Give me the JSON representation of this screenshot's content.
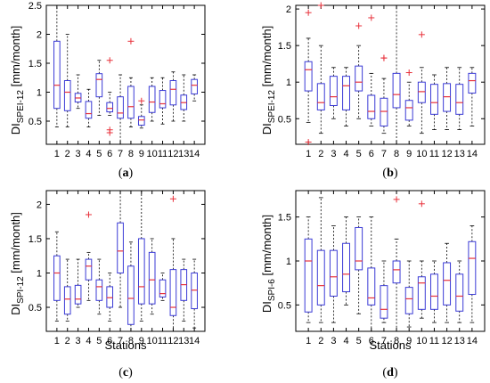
{
  "chart_data": [
    {
      "type": "boxplot",
      "caption": "(a)",
      "ylabel_main": "DI",
      "ylabel_sub": "SPEI-12",
      "ylabel_unit": " [mm/month]",
      "xlabel": "",
      "ylim": [
        0.1,
        2.5
      ],
      "yticks": [
        0.5,
        1,
        1.5,
        2,
        2.5
      ],
      "ytick_labels": [
        "0.5",
        "1",
        "1.5",
        "2",
        "2.5"
      ],
      "categories": [
        "1",
        "2",
        "3",
        "4",
        "5",
        "6",
        "7",
        "8",
        "9",
        "10",
        "11",
        "12",
        "13",
        "14"
      ],
      "boxes": [
        {
          "min": 0.4,
          "q1": 0.72,
          "median": 1.12,
          "q3": 1.88,
          "max": 2.5,
          "outliers": []
        },
        {
          "min": 0.4,
          "q1": 0.68,
          "median": 1.0,
          "q3": 1.2,
          "max": 2.0,
          "outliers": []
        },
        {
          "min": 0.72,
          "q1": 0.83,
          "median": 0.9,
          "q3": 0.98,
          "max": 1.3,
          "outliers": []
        },
        {
          "min": 0.4,
          "q1": 0.55,
          "median": 0.63,
          "q3": 0.84,
          "max": 1.05,
          "outliers": []
        },
        {
          "min": 0.6,
          "q1": 0.92,
          "median": 1.22,
          "q3": 1.32,
          "max": 1.55,
          "outliers": []
        },
        {
          "min": 0.6,
          "q1": 0.66,
          "median": 0.72,
          "q3": 0.82,
          "max": 1.0,
          "outliers": [
            1.55,
            0.35,
            0.3
          ]
        },
        {
          "min": 0.1,
          "q1": 0.55,
          "median": 0.64,
          "q3": 0.92,
          "max": 1.3,
          "outliers": []
        },
        {
          "min": 0.4,
          "q1": 0.55,
          "median": 0.75,
          "q3": 1.1,
          "max": 1.25,
          "outliers": [
            1.88
          ]
        },
        {
          "min": 0.38,
          "q1": 0.43,
          "median": 0.52,
          "q3": 0.58,
          "max": 0.78,
          "outliers": [
            0.85
          ]
        },
        {
          "min": 0.5,
          "q1": 0.65,
          "median": 0.83,
          "q3": 1.1,
          "max": 1.25,
          "outliers": []
        },
        {
          "min": 0.45,
          "q1": 0.73,
          "median": 0.8,
          "q3": 1.03,
          "max": 1.25,
          "outliers": []
        },
        {
          "min": 0.5,
          "q1": 0.78,
          "median": 1.05,
          "q3": 1.2,
          "max": 1.35,
          "outliers": []
        },
        {
          "min": 0.5,
          "q1": 0.7,
          "median": 0.82,
          "q3": 0.95,
          "max": 1.3,
          "outliers": []
        },
        {
          "min": 0.85,
          "q1": 0.97,
          "median": 1.12,
          "q3": 1.22,
          "max": 1.3,
          "outliers": []
        }
      ]
    },
    {
      "type": "boxplot",
      "caption": "(b)",
      "ylabel_main": "DI",
      "ylabel_sub": "SPEI-12",
      "ylabel_unit": " [mm/month]",
      "xlabel": "",
      "ylim": [
        0.15,
        2.05
      ],
      "yticks": [
        0.5,
        1,
        1.5,
        2
      ],
      "ytick_labels": [
        "0.5",
        "1",
        "1.5",
        "2"
      ],
      "categories": [
        "1",
        "2",
        "3",
        "4",
        "5",
        "6",
        "7",
        "8",
        "9",
        "10",
        "11",
        "12",
        "13",
        "14"
      ],
      "boxes": [
        {
          "min": 0.45,
          "q1": 0.88,
          "median": 1.17,
          "q3": 1.28,
          "max": 1.6,
          "outliers": [
            1.95,
            0.18
          ]
        },
        {
          "min": 0.3,
          "q1": 0.62,
          "median": 0.72,
          "q3": 0.98,
          "max": 1.5,
          "outliers": [
            2.05
          ]
        },
        {
          "min": 0.5,
          "q1": 0.68,
          "median": 0.8,
          "q3": 1.08,
          "max": 1.2,
          "outliers": []
        },
        {
          "min": 0.4,
          "q1": 0.62,
          "median": 0.95,
          "q3": 1.08,
          "max": 1.2,
          "outliers": []
        },
        {
          "min": 0.5,
          "q1": 0.88,
          "median": 1.0,
          "q3": 1.22,
          "max": 1.5,
          "outliers": [
            1.77
          ]
        },
        {
          "min": 0.4,
          "q1": 0.5,
          "median": 0.6,
          "q3": 0.82,
          "max": 1.12,
          "outliers": [
            1.88
          ]
        },
        {
          "min": 0.3,
          "q1": 0.4,
          "median": 0.6,
          "q3": 0.78,
          "max": 1.05,
          "outliers": [
            1.33,
            1.33
          ]
        },
        {
          "min": 0.15,
          "q1": 0.65,
          "median": 0.83,
          "q3": 1.12,
          "max": 2.05,
          "outliers": []
        },
        {
          "min": 0.4,
          "q1": 0.48,
          "median": 0.65,
          "q3": 0.75,
          "max": 1.0,
          "outliers": [
            1.13
          ]
        },
        {
          "min": 0.3,
          "q1": 0.72,
          "median": 0.87,
          "q3": 1.0,
          "max": 1.2,
          "outliers": [
            1.65
          ]
        },
        {
          "min": 0.35,
          "q1": 0.56,
          "median": 0.72,
          "q3": 0.97,
          "max": 1.1,
          "outliers": []
        },
        {
          "min": 0.35,
          "q1": 0.6,
          "median": 0.8,
          "q3": 0.98,
          "max": 1.2,
          "outliers": []
        },
        {
          "min": 0.35,
          "q1": 0.56,
          "median": 0.72,
          "q3": 0.97,
          "max": 1.2,
          "outliers": []
        },
        {
          "min": 0.4,
          "q1": 0.85,
          "median": 1.02,
          "q3": 1.12,
          "max": 1.2,
          "outliers": []
        }
      ]
    },
    {
      "type": "boxplot",
      "caption": "(c)",
      "ylabel_main": "DI",
      "ylabel_sub": "SPI-12",
      "ylabel_unit": " [mm/month]",
      "xlabel": "Stations",
      "ylim": [
        0.15,
        2.2
      ],
      "yticks": [
        0.5,
        1,
        1.5,
        2
      ],
      "ytick_labels": [
        "0.5",
        "1",
        "1.5",
        "2"
      ],
      "categories": [
        "1",
        "2",
        "3",
        "4",
        "5",
        "6",
        "7",
        "8",
        "9",
        "10",
        "11",
        "12",
        "13",
        "14"
      ],
      "boxes": [
        {
          "min": 0.3,
          "q1": 0.6,
          "median": 1.0,
          "q3": 1.25,
          "max": 1.6,
          "outliers": []
        },
        {
          "min": 0.3,
          "q1": 0.4,
          "median": 0.62,
          "q3": 0.8,
          "max": 1.2,
          "outliers": []
        },
        {
          "min": 0.5,
          "q1": 0.55,
          "median": 0.62,
          "q3": 0.82,
          "max": 1.2,
          "outliers": []
        },
        {
          "min": 0.6,
          "q1": 0.9,
          "median": 1.1,
          "q3": 1.2,
          "max": 1.3,
          "outliers": [
            1.85
          ]
        },
        {
          "min": 0.4,
          "q1": 0.6,
          "median": 0.8,
          "q3": 0.9,
          "max": 1.2,
          "outliers": []
        },
        {
          "min": 0.3,
          "q1": 0.5,
          "median": 0.64,
          "q3": 0.8,
          "max": 1.0,
          "outliers": []
        },
        {
          "min": 0.5,
          "q1": 1.0,
          "median": 1.32,
          "q3": 1.73,
          "max": 2.2,
          "outliers": []
        },
        {
          "min": 0.15,
          "q1": 0.25,
          "median": 0.63,
          "q3": 1.1,
          "max": 1.45,
          "outliers": []
        },
        {
          "min": 0.3,
          "q1": 0.55,
          "median": 0.8,
          "q3": 1.5,
          "max": 2.2,
          "outliers": []
        },
        {
          "min": 0.4,
          "q1": 0.55,
          "median": 0.9,
          "q3": 1.3,
          "max": 1.5,
          "outliers": []
        },
        {
          "min": 0.6,
          "q1": 0.65,
          "median": 0.7,
          "q3": 0.9,
          "max": 1.0,
          "outliers": []
        },
        {
          "min": 0.15,
          "q1": 0.38,
          "median": 0.5,
          "q3": 1.05,
          "max": 1.5,
          "outliers": [
            2.08
          ]
        },
        {
          "min": 0.3,
          "q1": 0.6,
          "median": 0.83,
          "q3": 1.05,
          "max": 1.2,
          "outliers": []
        },
        {
          "min": 0.2,
          "q1": 0.48,
          "median": 0.75,
          "q3": 1.0,
          "max": 1.2,
          "outliers": []
        }
      ]
    },
    {
      "type": "boxplot",
      "caption": "(d)",
      "ylabel_main": "DI",
      "ylabel_sub": "SPI-6",
      "ylabel_unit": " [mm/month]",
      "xlabel": "Stations",
      "ylim": [
        0.2,
        1.8
      ],
      "yticks": [
        0.5,
        1,
        1.5
      ],
      "ytick_labels": [
        "0.5",
        "1",
        "1.5"
      ],
      "categories": [
        "1",
        "2",
        "3",
        "4",
        "5",
        "6",
        "7",
        "8",
        "9",
        "10",
        "11",
        "12",
        "13",
        "14"
      ],
      "boxes": [
        {
          "min": 0.3,
          "q1": 0.42,
          "median": 1.0,
          "q3": 1.25,
          "max": 1.5,
          "outliers": []
        },
        {
          "min": 0.3,
          "q1": 0.5,
          "median": 0.72,
          "q3": 1.12,
          "max": 1.72,
          "outliers": []
        },
        {
          "min": 0.3,
          "q1": 0.6,
          "median": 0.82,
          "q3": 1.12,
          "max": 1.4,
          "outliers": []
        },
        {
          "min": 0.5,
          "q1": 0.65,
          "median": 0.85,
          "q3": 1.2,
          "max": 1.5,
          "outliers": []
        },
        {
          "min": 0.4,
          "q1": 0.9,
          "median": 1.0,
          "q3": 1.38,
          "max": 1.5,
          "outliers": []
        },
        {
          "min": 0.2,
          "q1": 0.5,
          "median": 0.58,
          "q3": 0.92,
          "max": 1.5,
          "outliers": []
        },
        {
          "min": 0.3,
          "q1": 0.35,
          "median": 0.45,
          "q3": 0.72,
          "max": 1.0,
          "outliers": []
        },
        {
          "min": 0.2,
          "q1": 0.75,
          "median": 0.9,
          "q3": 1.0,
          "max": 1.25,
          "outliers": [
            1.7
          ]
        },
        {
          "min": 0.25,
          "q1": 0.4,
          "median": 0.57,
          "q3": 0.7,
          "max": 1.0,
          "outliers": []
        },
        {
          "min": 0.35,
          "q1": 0.45,
          "median": 0.75,
          "q3": 0.82,
          "max": 1.0,
          "outliers": [
            1.65
          ]
        },
        {
          "min": 0.3,
          "q1": 0.45,
          "median": 0.6,
          "q3": 0.85,
          "max": 1.0,
          "outliers": []
        },
        {
          "min": 0.3,
          "q1": 0.5,
          "median": 0.78,
          "q3": 0.98,
          "max": 1.2,
          "outliers": []
        },
        {
          "min": 0.3,
          "q1": 0.43,
          "median": 0.6,
          "q3": 0.85,
          "max": 1.0,
          "outliers": []
        },
        {
          "min": 0.3,
          "q1": 0.62,
          "median": 1.03,
          "q3": 1.22,
          "max": 1.4,
          "outliers": []
        }
      ]
    }
  ],
  "colors": {
    "box": "#3b3bd6",
    "median": "#e8323c",
    "outlier": "#e8323c",
    "whisker": "#000000",
    "axis": "#000000"
  }
}
